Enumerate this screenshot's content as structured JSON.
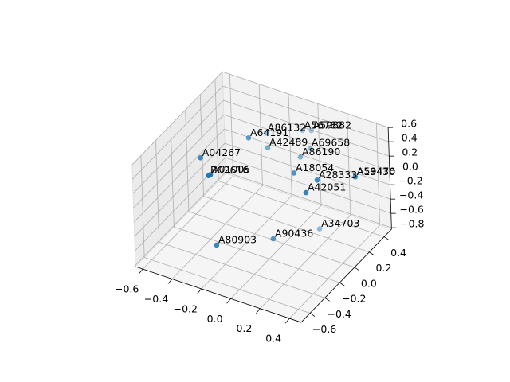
{
  "chart_data": {
    "type": "scatter3d",
    "xlim": [
      -0.65,
      0.48
    ],
    "ylim": [
      -0.72,
      0.5
    ],
    "zlim": [
      -0.82,
      0.6
    ],
    "xticks": [
      {
        "value": -0.6,
        "label": "−0.6"
      },
      {
        "value": -0.4,
        "label": "−0.4"
      },
      {
        "value": -0.2,
        "label": "−0.2"
      },
      {
        "value": 0,
        "label": "0.0"
      },
      0.2,
      0.4
    ],
    "yticks": [
      {
        "value": -0.6,
        "label": "−0.6"
      },
      {
        "value": -0.4,
        "label": "−0.4"
      },
      {
        "value": -0.2,
        "label": "−0.2"
      },
      {
        "value": 0,
        "label": "0.0"
      },
      0.2,
      0.4
    ],
    "zticks": [
      {
        "value": -0.8,
        "label": "−0.8"
      },
      {
        "value": -0.6,
        "label": "−0.6"
      },
      {
        "value": -0.4,
        "label": "−0.4"
      },
      {
        "value": -0.2,
        "label": "−0.2"
      },
      {
        "value": 0,
        "label": "0.0"
      },
      0.2,
      0.4,
      0.6
    ],
    "grid": true,
    "series": [
      {
        "color": "#1f77b4",
        "labels": [
          "A80903",
          "A90436",
          "A34703",
          "A42051",
          "A28333",
          "A18054",
          "A59470",
          "A13430",
          "A86190",
          "A69658",
          "A42489",
          "A64191",
          "A86132",
          "A56782",
          "A59882",
          "A04267",
          "A01005",
          "B02616"
        ],
        "x": [
          -0.244,
          0.016,
          0.153,
          0.173,
          0.2,
          0.042,
          0.306,
          0.31,
          -0.016,
          -0.001,
          -0.186,
          -0.263,
          -0.247,
          -0.1,
          -0.04,
          -0.44,
          -0.324,
          -0.335
        ],
        "y": [
          -0.42,
          -0.17,
          0.18,
          -0.02,
          0.08,
          0.08,
          0.38,
          0.37,
          0.28,
          0.38,
          0.18,
          0.08,
          0.28,
          0.48,
          0.48,
          -0.22,
          -0.32,
          -0.32
        ],
        "z": [
          -0.56,
          -0.56,
          -0.7,
          0.033,
          0.12,
          0.11,
          -0.08,
          -0.07,
          0.08,
          0.11,
          0.2,
          0.39,
          0.255,
          0.18,
          0.22,
          0.31,
          0.26,
          0.24
        ]
      }
    ]
  }
}
